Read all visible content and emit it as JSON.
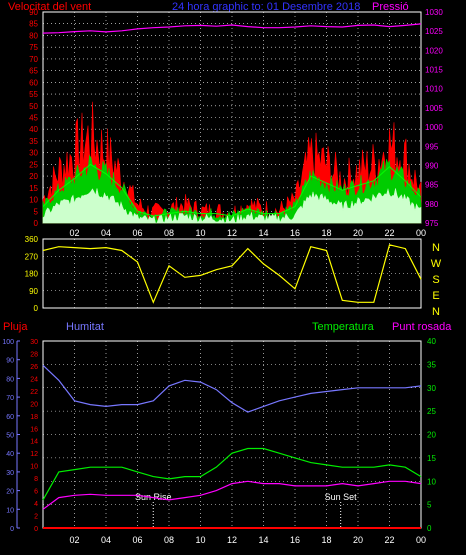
{
  "colors": {
    "background": "#000000",
    "grid": "#ffffff",
    "wind": "#ff0000",
    "wind_avg": "#00cc00",
    "wind_low": "#ccffcc",
    "pressure": "#ff00ff",
    "direction": "#ffff00",
    "rain": "#ff0000",
    "humidity": "#7777ff",
    "temperature": "#00ee00",
    "dewpoint": "#ff00ff",
    "title": "#3333ff",
    "sun": "#ffffff"
  },
  "chart_data": [
    {
      "type": "line",
      "panel": "wind",
      "title": "24 hora graphic to: 01 Desembre 2018",
      "left_label": "Velocitat del vent",
      "right_label": "Pressió",
      "x_ticks": [
        "02",
        "04",
        "06",
        "08",
        "10",
        "12",
        "14",
        "16",
        "18",
        "20",
        "22",
        "00"
      ],
      "y_left": {
        "min": 0,
        "max": 90,
        "ticks": [
          0,
          5,
          10,
          15,
          20,
          25,
          30,
          35,
          40,
          45,
          50,
          55,
          60,
          65,
          70,
          75,
          80,
          85,
          90
        ]
      },
      "y_right": {
        "min": 975,
        "max": 1030,
        "ticks": [
          975,
          980,
          985,
          990,
          995,
          1000,
          1005,
          1010,
          1015,
          1020,
          1025,
          1030
        ]
      },
      "x": [
        0,
        1,
        2,
        3,
        4,
        5,
        6,
        7,
        8,
        9,
        10,
        11,
        12,
        13,
        14,
        15,
        16,
        17,
        18,
        19,
        20,
        21,
        22,
        23,
        24
      ],
      "series": [
        {
          "key": "gust",
          "values": [
            10,
            22,
            30,
            37,
            30,
            20,
            8,
            4,
            6,
            8,
            5,
            5,
            4,
            8,
            6,
            5,
            10,
            28,
            25,
            18,
            22,
            25,
            33,
            28,
            13
          ],
          "axis": "left"
        },
        {
          "key": "avg",
          "values": [
            7,
            14,
            19,
            25,
            21,
            15,
            5,
            3,
            4,
            5,
            4,
            4,
            3,
            6,
            4,
            4,
            7,
            20,
            17,
            14,
            16,
            18,
            24,
            18,
            11
          ],
          "axis": "left"
        },
        {
          "key": "low",
          "values": [
            3,
            8,
            10,
            15,
            12,
            7,
            2,
            1,
            2,
            3,
            2,
            2,
            1,
            3,
            2,
            2,
            3,
            12,
            10,
            7,
            9,
            11,
            14,
            10,
            5
          ],
          "axis": "left"
        },
        {
          "key": "pressure",
          "values": [
            1024.5,
            1024.6,
            1024.9,
            1025.1,
            1024.8,
            1025.1,
            1025.6,
            1025.9,
            1026.1,
            1026.4,
            1026.5,
            1026.3,
            1026.6,
            1026.2,
            1025.9,
            1025.9,
            1026.1,
            1026.4,
            1026.2,
            1026.1,
            1026.5,
            1026.6,
            1026.2,
            1026.5,
            1026.9
          ],
          "axis": "right"
        }
      ]
    },
    {
      "type": "line",
      "panel": "direction",
      "y": {
        "min": 0,
        "max": 360,
        "ticks": [
          0,
          90,
          180,
          270,
          360
        ]
      },
      "right_labels": [
        "N",
        "W",
        "S",
        "E",
        "N"
      ],
      "x": [
        0,
        1,
        2,
        3,
        4,
        5,
        6,
        7,
        8,
        9,
        10,
        11,
        12,
        13,
        14,
        15,
        16,
        17,
        18,
        19,
        20,
        21,
        22,
        23,
        24
      ],
      "values": [
        300,
        320,
        315,
        310,
        315,
        300,
        240,
        30,
        220,
        160,
        170,
        200,
        220,
        310,
        230,
        170,
        100,
        320,
        300,
        40,
        30,
        30,
        330,
        310,
        150
      ]
    },
    {
      "type": "line",
      "panel": "climate",
      "labels": [
        "Pluja",
        "Humitat",
        "Temperatura",
        "Punt rosada"
      ],
      "y_rain": {
        "min": 0,
        "max": 30,
        "ticks": [
          0,
          2,
          4,
          6,
          8,
          10,
          12,
          14,
          16,
          18,
          20,
          22,
          24,
          26,
          28,
          30
        ]
      },
      "y_humidity": {
        "min": 0,
        "max": 100,
        "ticks": [
          0,
          10,
          20,
          30,
          40,
          50,
          60,
          70,
          80,
          90,
          100
        ]
      },
      "y_temp": {
        "min": 0,
        "max": 40,
        "ticks": [
          0,
          5,
          10,
          15,
          20,
          25,
          30,
          35,
          40
        ]
      },
      "sun_rise_label": "Sun Rise",
      "sun_set_label": "Sun Set",
      "sun_rise_hour": 7.0,
      "sun_set_hour": 18.9,
      "x": [
        0,
        1,
        2,
        3,
        4,
        5,
        6,
        7,
        8,
        9,
        10,
        11,
        12,
        13,
        14,
        15,
        16,
        17,
        18,
        19,
        20,
        21,
        22,
        23,
        24
      ],
      "series": [
        {
          "key": "humidity",
          "values": [
            87,
            79,
            68,
            66,
            65,
            66,
            66,
            68,
            76,
            79,
            78,
            74,
            67,
            62,
            65,
            68,
            70,
            72,
            73,
            74,
            75,
            75,
            75,
            75,
            76
          ]
        },
        {
          "key": "temperature",
          "values": [
            6,
            12,
            12.5,
            13,
            13,
            13,
            12,
            11,
            10.5,
            11,
            11,
            13,
            16,
            17,
            17,
            16,
            15,
            14,
            13.5,
            13,
            13,
            13,
            13.5,
            13,
            11
          ]
        },
        {
          "key": "dewpoint",
          "values": [
            4,
            6.5,
            7,
            7.2,
            7,
            7,
            7,
            6.5,
            6,
            6.5,
            7,
            8,
            9.5,
            10,
            9.5,
            9.5,
            9,
            9,
            9,
            9.5,
            9,
            9.5,
            10,
            10,
            9.5
          ]
        },
        {
          "key": "rain",
          "values": [
            0,
            0,
            0,
            0,
            0,
            0,
            0,
            0,
            0,
            0,
            0,
            0,
            0,
            0,
            0,
            0,
            0,
            0,
            0,
            0,
            0,
            0,
            0,
            0,
            0
          ]
        }
      ]
    }
  ]
}
